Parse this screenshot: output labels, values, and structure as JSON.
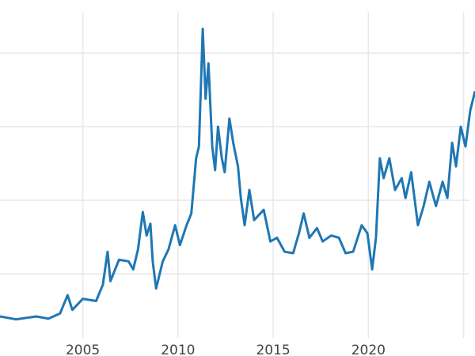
{
  "chart_data": {
    "type": "line",
    "title": "",
    "xlabel": "",
    "ylabel": "",
    "xlim": [
      2000.65,
      2025.6
    ],
    "ylim": [
      1.3,
      45.6
    ],
    "grid": true,
    "x_ticks": [
      2005,
      2010,
      2015,
      2020,
      2025
    ],
    "x_tick_labels": [
      "2005",
      "2010",
      "2015",
      "2020",
      ""
    ],
    "y_gridlines": [
      10,
      20,
      30,
      40
    ],
    "line_color": "#1f77b4",
    "series": [
      {
        "x": [
          2000.65,
          2001.5,
          2002.55,
          2003.2,
          2003.8,
          2004.2,
          2004.45,
          2005,
          2005.7,
          2006.05,
          2006.3,
          2006.45,
          2006.9,
          2007.4,
          2007.65,
          2007.9,
          2008.15,
          2008.35,
          2008.55,
          2008.67,
          2008.85,
          2009.2,
          2009.5,
          2009.85,
          2010.1,
          2010.45,
          2010.7,
          2010.95,
          2011.1,
          2011.3,
          2011.45,
          2011.6,
          2011.8,
          2011.95,
          2012.1,
          2012.3,
          2012.45,
          2012.7,
          2012.9,
          2013.15,
          2013.3,
          2013.5,
          2013.75,
          2014,
          2014.5,
          2014.85,
          2015.2,
          2015.6,
          2016.05,
          2016.35,
          2016.6,
          2016.9,
          2017.3,
          2017.6,
          2018.05,
          2018.45,
          2018.8,
          2019.2,
          2019.65,
          2019.95,
          2020.2,
          2020.4,
          2020.6,
          2020.8,
          2021.1,
          2021.4,
          2021.75,
          2021.95,
          2022.25,
          2022.6,
          2022.9,
          2023.2,
          2023.55,
          2023.9,
          2024.15,
          2024.4,
          2024.6,
          2024.85,
          2025.1,
          2025.35,
          2025.6
        ],
        "y": [
          4.2,
          3.8,
          4.2,
          3.9,
          4.6,
          7.1,
          5.1,
          6.6,
          6.3,
          8.5,
          13.0,
          9.0,
          11.9,
          11.7,
          10.6,
          13.3,
          18.4,
          15.2,
          16.8,
          11.7,
          8.0,
          11.7,
          13.3,
          16.6,
          13.9,
          16.6,
          18.2,
          25.7,
          27.3,
          43.3,
          33.8,
          38.6,
          27.3,
          24.1,
          30.0,
          25.7,
          23.8,
          31.1,
          27.8,
          24.6,
          20.3,
          16.6,
          21.4,
          17.3,
          18.7,
          14.4,
          14.9,
          13.0,
          12.8,
          15.5,
          18.2,
          14.9,
          16.2,
          14.4,
          15.2,
          14.9,
          12.8,
          13.0,
          16.6,
          15.5,
          10.6,
          14.9,
          25.7,
          23.0,
          25.7,
          21.4,
          23.0,
          20.3,
          23.8,
          16.6,
          19.2,
          22.5,
          19.2,
          22.5,
          20.3,
          27.8,
          24.6,
          30.0,
          27.3,
          32.2,
          34.8
        ]
      }
    ]
  }
}
